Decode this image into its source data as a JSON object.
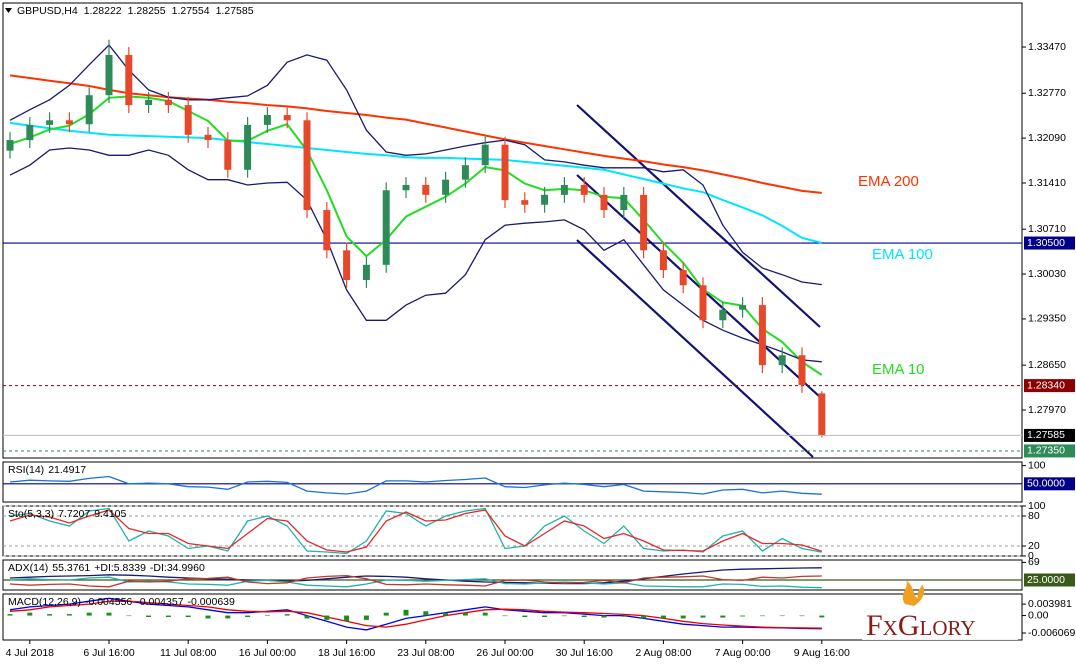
{
  "chart_data": [
    {
      "type": "candlestick",
      "symbol": "GBPUSD,H4",
      "categories": [
        null,
        "4 Jul 2018",
        null,
        null,
        null,
        "6 Jul 16:00",
        null,
        null,
        null,
        "11 Jul 08:00",
        null,
        null,
        null,
        "16 Jul 00:00",
        null,
        null,
        null,
        "18 Jul 16:00",
        null,
        null,
        null,
        "23 Jul 08:00",
        null,
        null,
        null,
        "26 Jul 00:00",
        null,
        null,
        null,
        "30 Jul 16:00",
        null,
        null,
        null,
        "2 Aug 08:00",
        null,
        null,
        null,
        "7 Aug 00:00",
        null,
        null,
        null,
        "9 Aug 16:00"
      ],
      "open": [
        1.319,
        1.3206,
        1.3229,
        1.3236,
        1.323,
        1.3274,
        1.3335,
        1.3259,
        1.3267,
        1.3259,
        1.3214,
        1.3206,
        1.3161,
        1.3229,
        1.3244,
        1.3236,
        1.31,
        1.3039,
        1.2994,
        1.3017,
        1.313,
        1.3138,
        1.3123,
        1.3146,
        1.3168,
        1.3199,
        1.3115,
        1.3108,
        1.3123,
        1.3138,
        1.3123,
        1.31,
        1.3123,
        1.3039,
        1.3009,
        1.2986,
        1.2933,
        1.2949,
        1.2956,
        1.2865,
        1.288,
        1.28222
      ],
      "high": [
        1.3218,
        1.3241,
        1.3248,
        1.3248,
        1.3286,
        1.3358,
        1.3347,
        1.3279,
        1.3279,
        1.3271,
        1.3226,
        1.3218,
        1.3241,
        1.3256,
        1.3256,
        1.3248,
        1.3112,
        1.3051,
        1.3029,
        1.3142,
        1.315,
        1.315,
        1.3158,
        1.318,
        1.3211,
        1.3211,
        1.3127,
        1.3135,
        1.315,
        1.315,
        1.3135,
        1.3135,
        1.3135,
        1.3051,
        1.3021,
        1.2998,
        1.2961,
        1.2968,
        1.2968,
        1.2892,
        1.2892,
        1.28255
      ],
      "low": [
        1.3178,
        1.3194,
        1.3217,
        1.3218,
        1.3218,
        1.3262,
        1.3247,
        1.3247,
        1.3247,
        1.3202,
        1.3194,
        1.3149,
        1.3149,
        1.3217,
        1.3224,
        1.3088,
        1.3027,
        1.2982,
        1.2982,
        1.3005,
        1.3118,
        1.3111,
        1.3111,
        1.3134,
        1.3156,
        1.3103,
        1.3096,
        1.3096,
        1.3111,
        1.3111,
        1.3088,
        1.3088,
        1.3027,
        1.2997,
        1.2974,
        1.2921,
        1.2921,
        1.2937,
        1.2853,
        1.2853,
        1.2823,
        1.27554
      ],
      "close": [
        1.3206,
        1.3229,
        1.3236,
        1.323,
        1.3274,
        1.3335,
        1.3259,
        1.3267,
        1.3259,
        1.3214,
        1.3206,
        1.3161,
        1.3229,
        1.3244,
        1.3236,
        1.31,
        1.3039,
        1.2994,
        1.3017,
        1.313,
        1.3138,
        1.3123,
        1.3146,
        1.3168,
        1.3199,
        1.3115,
        1.3108,
        1.3123,
        1.3138,
        1.3123,
        1.31,
        1.3123,
        1.3039,
        1.3009,
        1.2986,
        1.2933,
        1.2949,
        1.2956,
        1.2865,
        1.288,
        1.2835,
        1.27585
      ],
      "up_color": "#2e8b57",
      "down_color": "#e8482a",
      "series": [
        {
          "name": "EMA 200",
          "color": "#ff3300",
          "values": [
            1.3304,
            1.33,
            1.3296,
            1.3292,
            1.3288,
            1.3282,
            1.3277,
            1.3274,
            1.3271,
            1.3269,
            1.3267,
            1.3264,
            1.3262,
            1.3259,
            1.3257,
            1.3254,
            1.325,
            1.3247,
            1.3244,
            1.324,
            1.3237,
            1.3231,
            1.3225,
            1.3219,
            1.3213,
            1.3207,
            1.3202,
            1.3197,
            1.3192,
            1.3187,
            1.3182,
            1.3178,
            1.3174,
            1.3169,
            1.3165,
            1.316,
            1.3154,
            1.3148,
            1.3141,
            1.3135,
            1.3129,
            1.3126
          ]
        },
        {
          "name": "EMA 100",
          "color": "#00e5ff",
          "values": [
            1.3232,
            1.3228,
            1.3224,
            1.322,
            1.3217,
            1.3214,
            1.3213,
            1.3212,
            1.3211,
            1.321,
            1.3209,
            1.3206,
            1.3203,
            1.32,
            1.3197,
            1.3194,
            1.3191,
            1.3188,
            1.3185,
            1.3183,
            1.318,
            1.3179,
            1.3179,
            1.3178,
            1.3177,
            1.3176,
            1.3173,
            1.317,
            1.3167,
            1.3164,
            1.3161,
            1.3154,
            1.3147,
            1.314,
            1.3133,
            1.3127,
            1.3115,
            1.3104,
            1.3092,
            1.3076,
            1.3058,
            1.305
          ]
        },
        {
          "name": "EMA 10",
          "color": "#22dd22",
          "values": [
            1.32,
            1.321,
            1.3222,
            1.3228,
            1.3245,
            1.327,
            1.3272,
            1.327,
            1.3265,
            1.325,
            1.3235,
            1.3205,
            1.3205,
            1.322,
            1.323,
            1.319,
            1.313,
            1.306,
            1.303,
            1.3055,
            1.309,
            1.3105,
            1.312,
            1.314,
            1.3165,
            1.316,
            1.314,
            1.313,
            1.3132,
            1.313,
            1.312,
            1.3118,
            1.3085,
            1.305,
            1.302,
            1.298,
            1.296,
            1.2955,
            1.292,
            1.29,
            1.287,
            1.285
          ]
        },
        {
          "color": "#1a1a6e",
          "values": [
            1.3236,
            1.3252,
            1.3267,
            1.3289,
            1.332,
            1.335,
            1.3312,
            1.3282,
            1.3271,
            1.3267,
            1.3267,
            1.327,
            1.3273,
            1.3289,
            1.3324,
            1.3335,
            1.3327,
            1.3282,
            1.3221,
            1.3188,
            1.3183,
            1.3185,
            1.3191,
            1.3197,
            1.3202,
            1.3206,
            1.3199,
            1.3176,
            1.3173,
            1.3168,
            1.3164,
            1.3164,
            1.3164,
            1.3158,
            1.3161,
            1.3138,
            1.3077,
            1.3036,
            1.3012,
            1.3002,
            1.2991,
            1.2987
          ]
        },
        {
          "color": "#1a1a6e",
          "values": [
            1.3153,
            1.3168,
            1.3191,
            1.3194,
            1.3191,
            1.3183,
            1.3183,
            1.3191,
            1.3183,
            1.3161,
            1.3146,
            1.3146,
            1.3138,
            1.3141,
            1.3142,
            1.3115,
            1.3055,
            1.2979,
            1.2933,
            1.2933,
            1.2956,
            1.2971,
            1.2974,
            1.3002,
            1.3055,
            1.3077,
            1.308,
            1.3082,
            1.3085,
            1.307,
            1.3039,
            1.3055,
            1.3017,
            1.2979,
            1.2956,
            1.2933,
            1.2918,
            1.2906,
            1.2896,
            1.2885,
            1.2873,
            1.287
          ]
        }
      ],
      "levels": [
        {
          "value": 1.305,
          "label": "1.30500",
          "color": "#00008b",
          "dash": false
        },
        {
          "value": 1.2834,
          "label": "1.28340",
          "color": "#8b0000",
          "dash": true
        },
        {
          "value": 1.2735,
          "label": "1.27350",
          "color": "#2e8b57",
          "dash": true
        }
      ],
      "ylim": [
        1.27243,
        1.34137
      ],
      "yticks": [
        {
          "value": 1.3347,
          "label": "1.33470"
        },
        {
          "value": 1.3277,
          "label": "1.32770"
        },
        {
          "value": 1.3209,
          "label": "1.32090"
        },
        {
          "value": 1.3141,
          "label": "1.31410"
        },
        {
          "value": 1.3071,
          "label": "1.30710"
        },
        {
          "value": 1.3003,
          "label": "1.30030"
        },
        {
          "value": 1.2935,
          "label": "1.29350"
        },
        {
          "value": 1.2865,
          "label": "1.28650"
        },
        {
          "value": 1.2797,
          "label": "1.27970"
        }
      ]
    },
    {
      "type": "line",
      "title": "RSI(14)",
      "series": [
        {
          "color": "#1e6fd9",
          "values": [
            55,
            60,
            58,
            57,
            65,
            70,
            50,
            52,
            50,
            42,
            41,
            35,
            55,
            57,
            54,
            30,
            25,
            22,
            30,
            58,
            58,
            55,
            59,
            62,
            66,
            42,
            40,
            47,
            52,
            48,
            42,
            48,
            30,
            28,
            26,
            22,
            33,
            35,
            25,
            30,
            24,
            21.4917
          ]
        }
      ],
      "levels": [
        {
          "value": 50,
          "label": "50.0000",
          "color": "#00008b",
          "dash": false
        }
      ],
      "ylim": [
        0,
        110
      ],
      "yticks": [
        100
      ]
    },
    {
      "type": "line",
      "title": "Sto(5,3,3)",
      "grid": true,
      "series": [
        {
          "color": "#20b2aa",
          "values": [
            80,
            85,
            70,
            60,
            90,
            95,
            30,
            50,
            40,
            15,
            20,
            10,
            70,
            80,
            60,
            10,
            8,
            5,
            30,
            90,
            85,
            60,
            80,
            90,
            95,
            15,
            20,
            60,
            80,
            50,
            25,
            60,
            15,
            10,
            12,
            8,
            40,
            50,
            10,
            35,
            15,
            7.7207
          ]
        },
        {
          "color": "#e8282a",
          "values": [
            70,
            82,
            78,
            66,
            80,
            92,
            55,
            45,
            45,
            25,
            20,
            15,
            45,
            75,
            70,
            30,
            12,
            8,
            18,
            70,
            88,
            70,
            72,
            85,
            92,
            40,
            20,
            45,
            70,
            60,
            35,
            45,
            30,
            12,
            11,
            10,
            30,
            45,
            25,
            25,
            22,
            9.4105
          ]
        }
      ],
      "ylim": [
        0,
        100
      ],
      "yticks": [
        0,
        20,
        80,
        100
      ]
    },
    {
      "type": "line",
      "title": "ADX(14)",
      "series": [
        {
          "color": "#1a1a6e",
          "values": [
            30,
            32,
            34,
            35,
            36,
            38,
            37,
            35,
            32,
            30,
            28,
            27,
            25,
            24,
            22,
            24,
            28,
            32,
            35,
            34,
            32,
            28,
            25,
            22,
            20,
            19,
            18,
            17,
            16,
            16,
            18,
            22,
            28,
            34,
            40,
            45,
            50,
            52,
            53,
            54,
            55,
            55.3761
          ]
        },
        {
          "name": "+DI:",
          "color": "#20b2aa",
          "values": [
            25,
            28,
            26,
            25,
            30,
            32,
            20,
            22,
            20,
            15,
            14,
            12,
            22,
            24,
            20,
            12,
            10,
            8,
            15,
            25,
            24,
            22,
            24,
            26,
            28,
            16,
            15,
            18,
            20,
            18,
            15,
            18,
            10,
            9,
            8,
            8,
            15,
            14,
            9,
            10,
            7,
            5.8339
          ]
        },
        {
          "name": "-DI:",
          "color": "#c0392b",
          "values": [
            15,
            12,
            14,
            15,
            10,
            8,
            22,
            20,
            22,
            28,
            29,
            32,
            20,
            16,
            18,
            30,
            34,
            36,
            28,
            14,
            13,
            15,
            13,
            12,
            10,
            24,
            25,
            20,
            17,
            19,
            24,
            18,
            30,
            32,
            33,
            35,
            26,
            24,
            32,
            30,
            34,
            34.996
          ],
          "value_labels": [
            null,
            null,
            null,
            null,
            null,
            null,
            null,
            null,
            null,
            null,
            null,
            null,
            null,
            null,
            null,
            null,
            null,
            null,
            null,
            null,
            null,
            null,
            null,
            null,
            null,
            null,
            null,
            null,
            null,
            null,
            null,
            null,
            null,
            null,
            null,
            null,
            null,
            null,
            null,
            null,
            null,
            "34.9960"
          ]
        }
      ],
      "levels": [
        {
          "value": 25,
          "label": "25.0000",
          "color": "#3a5a1a",
          "dash": false
        }
      ],
      "ylim": [
        0,
        75
      ],
      "yticks": [
        69
      ]
    },
    {
      "type": "line",
      "title": "MACD(12,26,9)",
      "series": [
        {
          "color": "#0000ee",
          "values": [
            0.002,
            0.003,
            0.0035,
            0.004,
            0.005,
            0.006,
            0.005,
            0.004,
            0.0035,
            0.003,
            0.002,
            0.001,
            0.001,
            0.0015,
            0.002,
            0,
            -0.002,
            -0.004,
            -0.005,
            -0.003,
            -0.001,
            0,
            0.001,
            0.002,
            0.003,
            0.002,
            0.0015,
            0.001,
            0.001,
            0.0005,
            0,
            0,
            -0.001,
            -0.002,
            -0.003,
            -0.0035,
            -0.004,
            -0.004,
            -0.0042,
            -0.0043,
            -0.0045,
            -0.004556
          ]
        },
        {
          "color": "#ee0000",
          "values": [
            0.0015,
            0.002,
            0.003,
            0.0035,
            0.004,
            0.005,
            0.005,
            0.0045,
            0.004,
            0.0035,
            0.003,
            0.002,
            0.0015,
            0.0013,
            0.0015,
            0.001,
            -0.0005,
            -0.002,
            -0.0035,
            -0.004,
            -0.003,
            -0.0015,
            0,
            0.001,
            0.002,
            0.0022,
            0.002,
            0.0015,
            0.0012,
            0.001,
            0.0007,
            0.0004,
            0,
            -0.001,
            -0.002,
            -0.0028,
            -0.0033,
            -0.0037,
            -0.004,
            -0.0042,
            -0.0043,
            -0.004357
          ]
        },
        {
          "color": "#1e8c1e",
          "kind": "bar",
          "values": [
            0.0005,
            0.001,
            0.0005,
            0.0005,
            0.001,
            0.001,
            0,
            -0.0005,
            -0.0005,
            -0.0005,
            -0.001,
            -0.001,
            -0.0005,
            0.0002,
            0.0005,
            -0.001,
            -0.0015,
            -0.002,
            -0.0015,
            0.001,
            0.002,
            0.0015,
            0.001,
            0.001,
            0.001,
            -0.0002,
            -0.0005,
            -0.0005,
            -0.0002,
            -0.0005,
            -0.0007,
            -0.0004,
            -0.001,
            -0.001,
            -0.001,
            -0.0007,
            -0.0007,
            -0.0003,
            -0.0002,
            -0.0001,
            -0.0002,
            -0.000639
          ]
        }
      ],
      "ylim": [
        -0.0085,
        0.0075
      ],
      "yticks": [
        0.003981,
        {
          "value": 0,
          "label": "0.00"
        },
        -0.006069
      ]
    }
  ],
  "logo": "FxGlory"
}
